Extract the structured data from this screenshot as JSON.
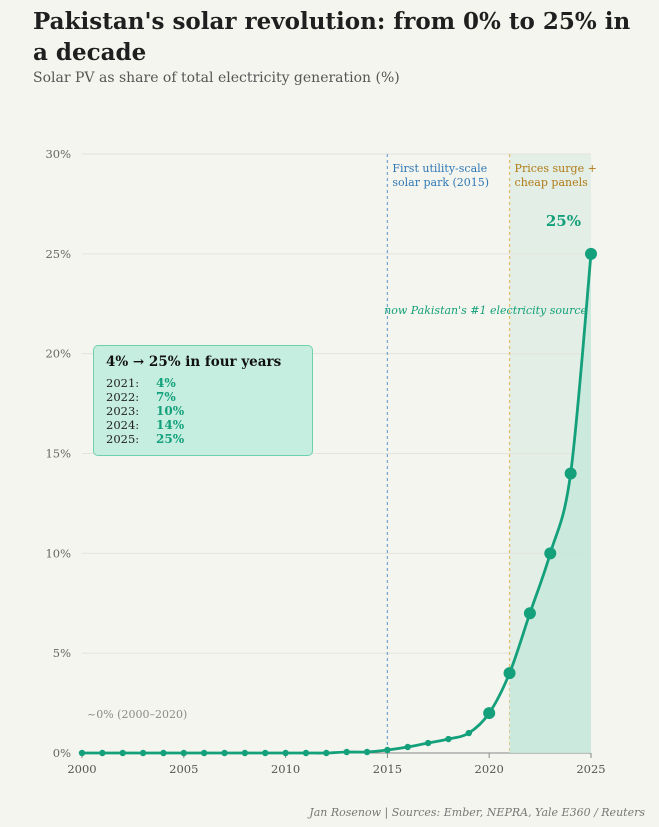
{
  "title": "Pakistan's solar revolution: from 0% to 25% in a decade",
  "subtitle": "Solar PV as share of total electricity generation (%)",
  "footer": "Jan Rosenow  |  Sources: Ember, NEPRA, Yale E360 / Reuters",
  "colors": {
    "line": "#13a07a",
    "shade": "#c8e8dc",
    "vline1": "#7aa9cf",
    "vline2": "#e3bf6b",
    "grid": "#e4e4dd",
    "axis": "#888888"
  },
  "chart_data": {
    "type": "line",
    "x": [
      2000,
      2001,
      2002,
      2003,
      2004,
      2005,
      2006,
      2007,
      2008,
      2009,
      2010,
      2011,
      2012,
      2013,
      2014,
      2015,
      2016,
      2017,
      2018,
      2019,
      2020,
      2021,
      2022,
      2023,
      2024,
      2025
    ],
    "values": [
      0,
      0,
      0,
      0,
      0,
      0,
      0,
      0,
      0,
      0,
      0,
      0,
      0,
      0.05,
      0.05,
      0.15,
      0.3,
      0.5,
      0.7,
      1.0,
      2,
      4,
      7,
      10,
      14,
      25
    ],
    "xlim": [
      2000,
      2025
    ],
    "ylim": [
      0,
      30
    ],
    "xticks": [
      2000,
      2005,
      2010,
      2015,
      2020,
      2025
    ],
    "yticks": [
      0,
      5,
      10,
      15,
      20,
      25,
      30
    ],
    "ytick_labels": [
      "0%",
      "5%",
      "10%",
      "15%",
      "20%",
      "25%",
      "30%"
    ],
    "highlight_from": 2021,
    "grid": true,
    "annotations": {
      "utility_park": {
        "x": 2015,
        "lines": [
          "First utility-scale",
          "solar park (2015)"
        ]
      },
      "prices_surge": {
        "x": 2021,
        "lines": [
          "Prices surge +",
          "cheap panels"
        ]
      },
      "end_label": "25%",
      "source_note": "now Pakistan's #1 electricity source",
      "baseline_note": "~0%  (2000–2020)"
    }
  },
  "statbox": {
    "heading": "4% → 25% in four years",
    "rows": [
      {
        "year": "2021:",
        "value": "4%"
      },
      {
        "year": "2022:",
        "value": "7%"
      },
      {
        "year": "2023:",
        "value": "10%"
      },
      {
        "year": "2024:",
        "value": "14%"
      },
      {
        "year": "2025:",
        "value": "25%"
      }
    ]
  }
}
